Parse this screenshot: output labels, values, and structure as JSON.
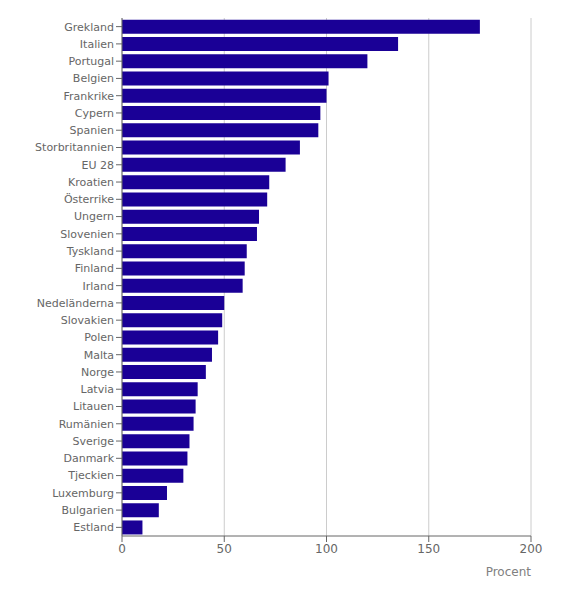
{
  "chart_data": {
    "type": "bar",
    "orientation": "horizontal",
    "categories": [
      "Grekland",
      "Italien",
      "Portugal",
      "Belgien",
      "Frankrike",
      "Cypern",
      "Spanien",
      "Storbritannien",
      "EU 28",
      "Kroatien",
      "Österrike",
      "Ungern",
      "Slovenien",
      "Tyskland",
      "Finland",
      "Irland",
      "Nedeländerna",
      "Slovakien",
      "Polen",
      "Malta",
      "Norge",
      "Latvia",
      "Litauen",
      "Rumänien",
      "Sverige",
      "Danmark",
      "Tjeckien",
      "Luxemburg",
      "Bulgarien",
      "Estland"
    ],
    "values": [
      175,
      135,
      120,
      101,
      100,
      97,
      96,
      87,
      80,
      72,
      71,
      67,
      66,
      61,
      60,
      59,
      50,
      49,
      47,
      44,
      41,
      37,
      36,
      35,
      33,
      32,
      30,
      22,
      18,
      10
    ],
    "color": "#1a0096",
    "xlabel": "Procent",
    "xlim": [
      0,
      200
    ],
    "xticks": [
      0,
      50,
      100,
      150,
      200
    ],
    "grid": true
  }
}
